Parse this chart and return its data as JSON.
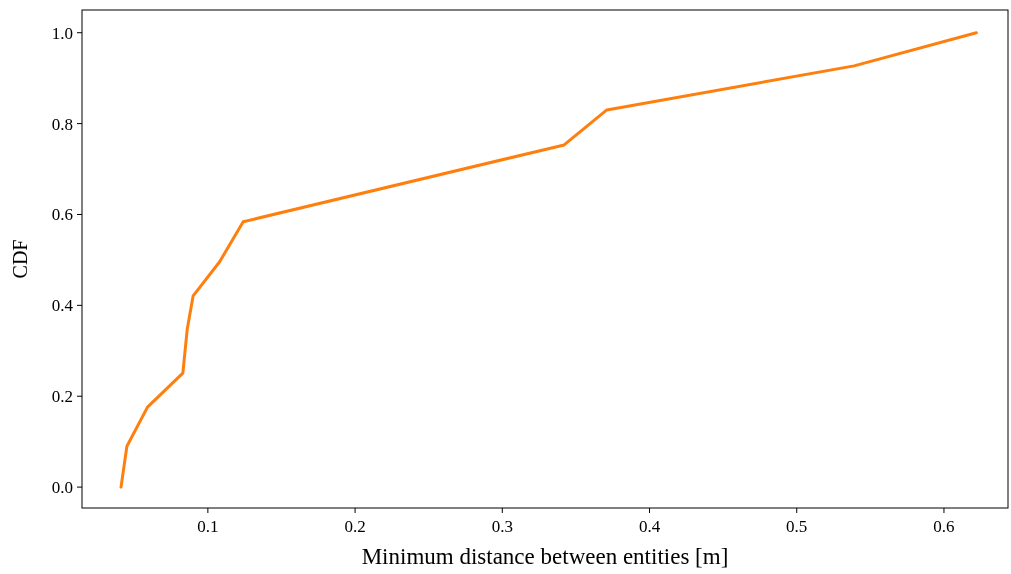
{
  "chart_data": {
    "type": "line",
    "xlabel": "Minimum distance between entities [m]",
    "ylabel": "CDF",
    "xlim": [
      0.0145,
      0.6435
    ],
    "ylim": [
      -0.046,
      1.05
    ],
    "xticks": [
      0.1,
      0.2,
      0.3,
      0.4,
      0.5,
      0.6
    ],
    "yticks": [
      {
        "value": 0,
        "label": "0.0"
      },
      0.2,
      0.4,
      0.6,
      0.8,
      {
        "value": 1,
        "label": "1.0"
      }
    ],
    "grid": false,
    "series": [
      {
        "color": "#ff7f0e",
        "x": [
          0.041,
          0.045,
          0.059,
          0.083,
          0.086,
          0.09,
          0.108,
          0.124,
          0.342,
          0.371,
          0.539,
          0.622
        ],
        "values": [
          0.0,
          0.09,
          0.176,
          0.251,
          0.348,
          0.421,
          0.496,
          0.584,
          0.753,
          0.83,
          0.927,
          1.0
        ]
      }
    ]
  }
}
